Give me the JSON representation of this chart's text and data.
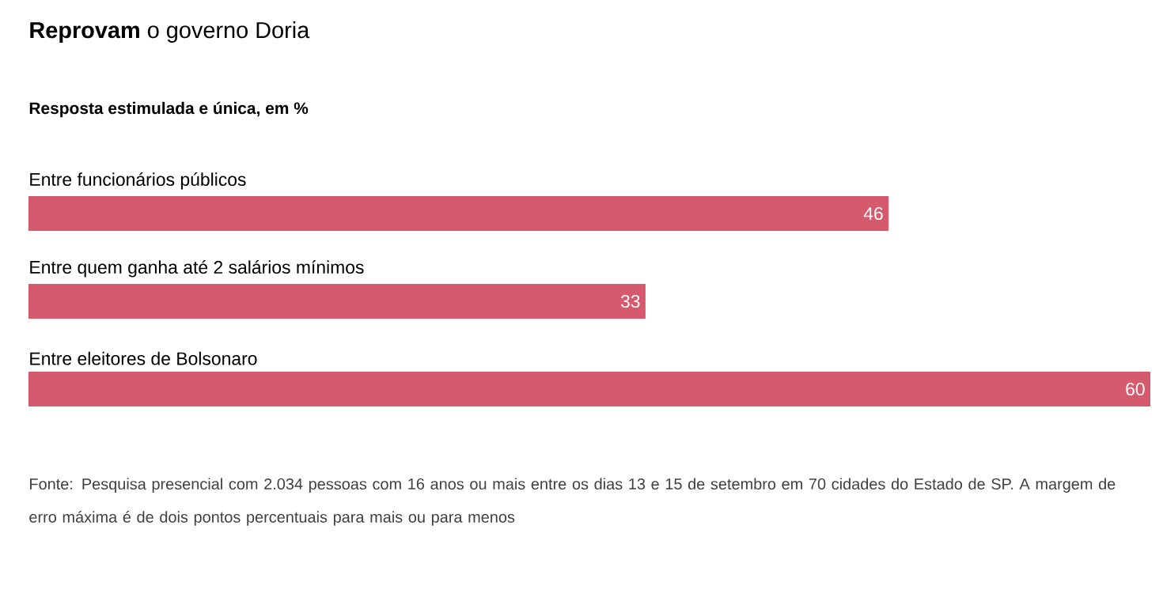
{
  "chart_data": {
    "type": "bar",
    "orientation": "horizontal",
    "title": "**Reprovam** o governo Doria",
    "subtitle": "Resposta estimulada e única, em %",
    "categories": [
      "Entre funcionários públicos",
      "Entre quem ganha até 2 salários mínimos",
      "Entre eleitores de Bolsonaro"
    ],
    "values": [
      46,
      33,
      60
    ],
    "color": "#d65a6e",
    "data_labels": true,
    "annotations": [
      "Fonte: Pesquisa presencial com 2.034 pessoas com 16 anos ou mais entre os dias 13 e 15 de setembro em 70 cidades do Estado de SP. A margem de erro máxima é de dois pontos percentuais para mais ou para menos"
    ]
  }
}
